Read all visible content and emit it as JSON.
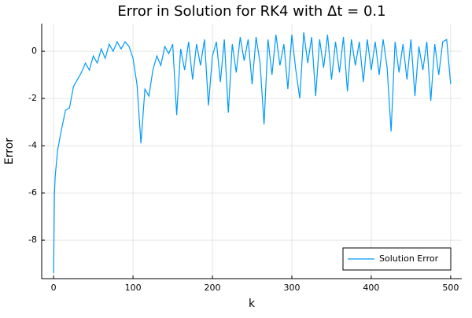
{
  "chart_data": {
    "type": "line",
    "title": "Error in Solution for RK4 with Δt = 0.1",
    "xlabel": "k",
    "ylabel": "Error",
    "x": [
      0,
      1,
      2,
      5,
      10,
      15,
      20,
      25,
      30,
      35,
      40,
      45,
      50,
      55,
      60,
      65,
      70,
      75,
      80,
      85,
      90,
      95,
      100,
      105,
      110,
      115,
      120,
      125,
      130,
      135,
      140,
      145,
      150,
      155,
      160,
      165,
      170,
      175,
      180,
      185,
      190,
      195,
      200,
      205,
      210,
      215,
      220,
      225,
      230,
      235,
      240,
      245,
      250,
      255,
      260,
      265,
      270,
      275,
      280,
      285,
      290,
      295,
      300,
      305,
      310,
      315,
      320,
      325,
      330,
      335,
      340,
      345,
      350,
      355,
      360,
      365,
      370,
      375,
      380,
      385,
      390,
      395,
      400,
      405,
      410,
      415,
      420,
      425,
      430,
      435,
      440,
      445,
      450,
      455,
      460,
      465,
      470,
      475,
      480,
      485,
      490,
      495,
      500
    ],
    "series": [
      {
        "name": "Solution Error",
        "color": "#009af9",
        "values": [
          -9.4,
          -6.1,
          -5.3,
          -4.2,
          -3.3,
          -2.5,
          -2.4,
          -1.5,
          -1.2,
          -0.9,
          -0.5,
          -0.8,
          -0.2,
          -0.5,
          0.1,
          -0.3,
          0.3,
          0.0,
          0.4,
          0.1,
          0.4,
          0.2,
          -0.3,
          -1.4,
          -3.9,
          -1.6,
          -1.9,
          -0.8,
          -0.2,
          -0.6,
          0.2,
          -0.1,
          0.3,
          -2.7,
          0.1,
          -0.8,
          0.4,
          -1.2,
          0.3,
          -0.6,
          0.5,
          -2.3,
          -0.2,
          0.4,
          -1.3,
          0.5,
          -2.6,
          0.3,
          -0.9,
          0.6,
          -0.4,
          0.5,
          -1.4,
          0.6,
          -0.5,
          -3.1,
          0.5,
          -1.0,
          0.7,
          -0.6,
          0.3,
          -1.6,
          0.7,
          -0.8,
          -2.0,
          0.8,
          -0.5,
          0.6,
          -1.9,
          0.5,
          -0.7,
          0.7,
          -1.2,
          0.4,
          -0.9,
          0.6,
          -1.7,
          0.5,
          -0.6,
          0.4,
          -1.3,
          0.5,
          -0.8,
          0.4,
          -1.0,
          0.5,
          -0.7,
          -3.4,
          0.4,
          -0.9,
          0.3,
          -1.2,
          0.5,
          -1.9,
          0.2,
          -0.8,
          0.4,
          -2.1,
          0.3,
          -1.0,
          0.4,
          0.5,
          -1.4
        ]
      }
    ],
    "xlim": [
      -15,
      514
    ],
    "ylim": [
      -9.63,
      1.17
    ],
    "xticks": [
      0,
      100,
      200,
      300,
      400,
      500
    ],
    "yticks": [
      -8,
      -6,
      -4,
      -2,
      0
    ],
    "grid": true,
    "legend": "bottom-right"
  }
}
